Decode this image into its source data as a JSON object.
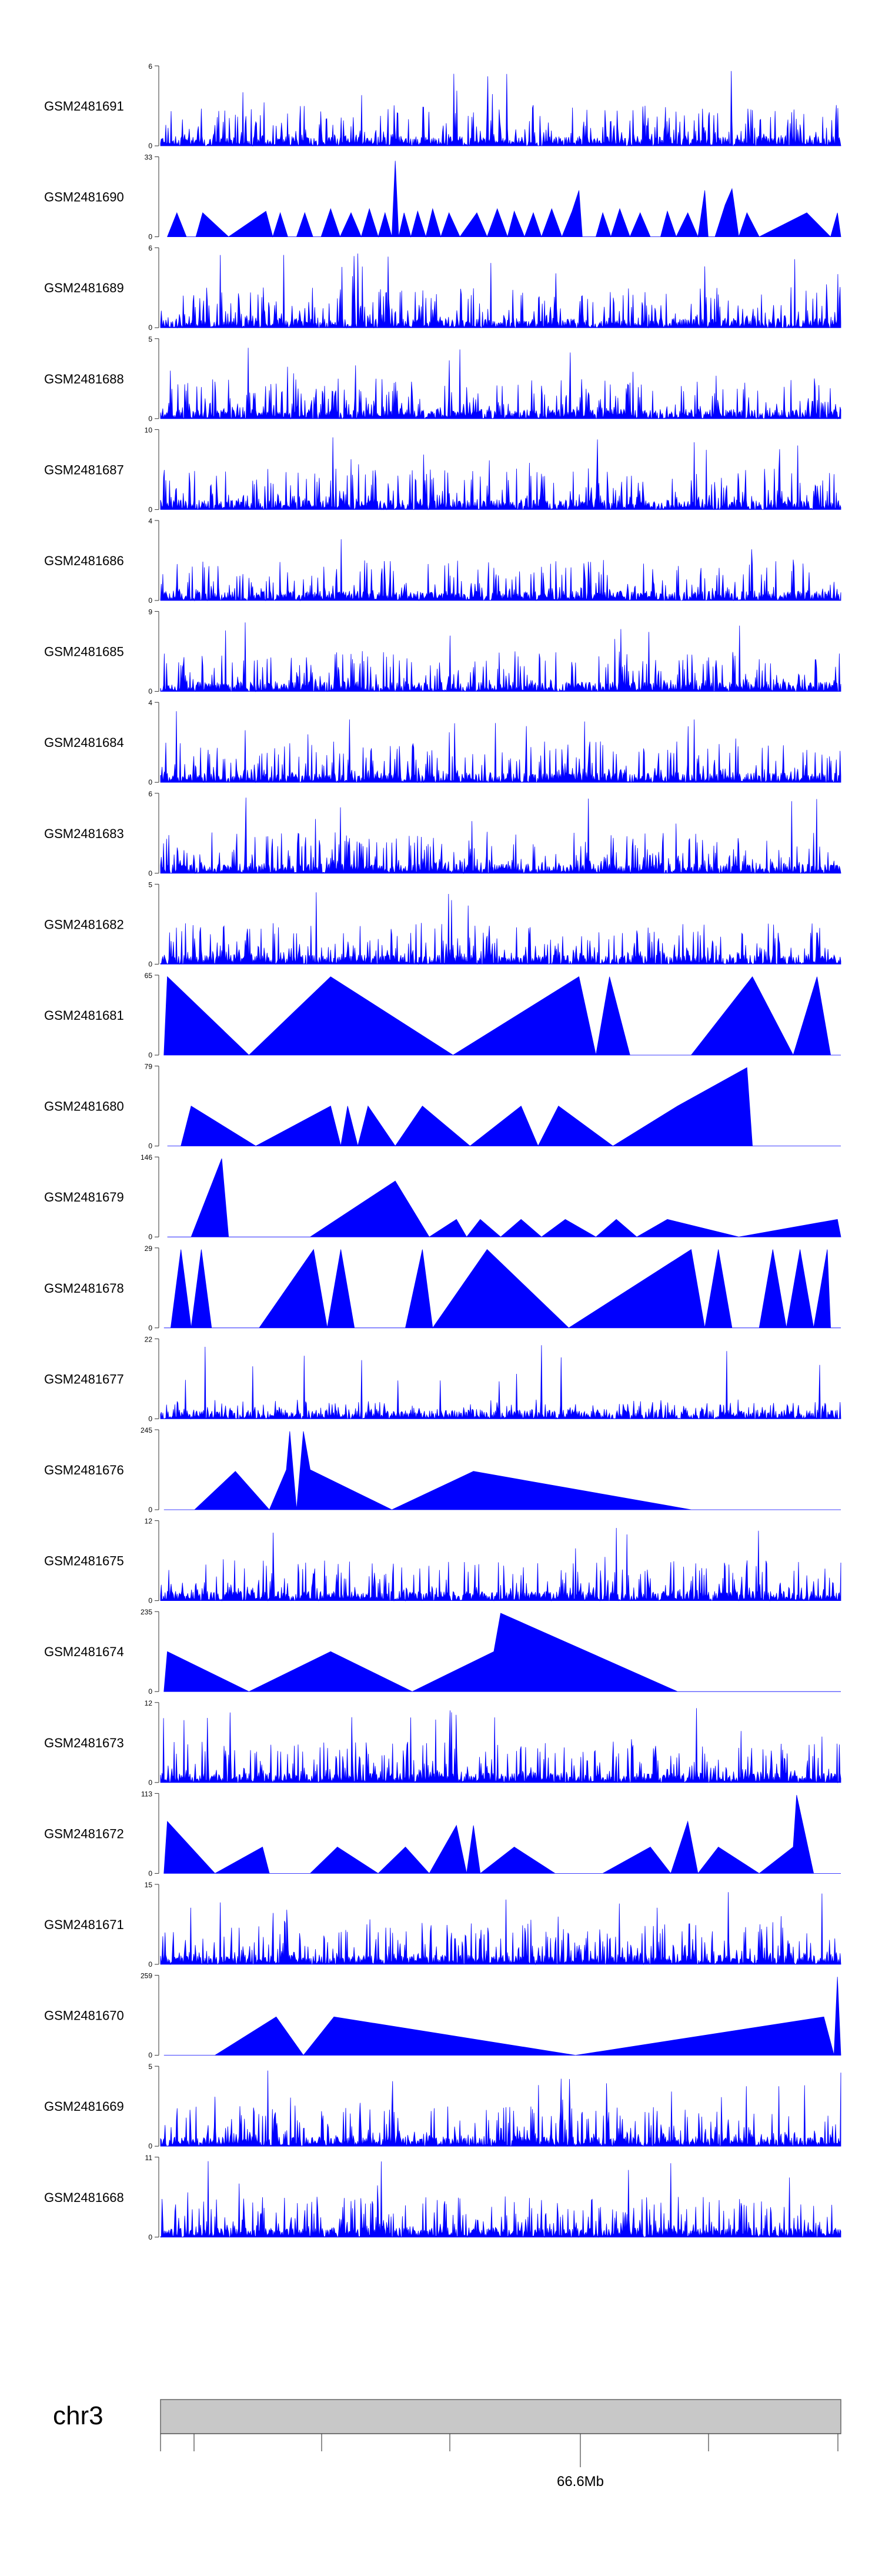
{
  "chart_data": {
    "type": "area",
    "title": "",
    "chromosome": "chr3",
    "genome_axis": {
      "tick_label": "66.6Mb"
    },
    "fill_color": "#0000ff",
    "ideogram_color": "#c8c8c8",
    "tracks": [
      {
        "name": "GSM2481691",
        "ymax": "6",
        "ymin": "0",
        "style": "dense",
        "seed": 11
      },
      {
        "name": "GSM2481690",
        "ymax": "33",
        "ymin": "0",
        "style": "sparse",
        "points": [
          [
            0.01,
            0
          ],
          [
            0.024,
            0.3
          ],
          [
            0.038,
            0
          ],
          [
            0.052,
            0
          ],
          [
            0.062,
            0.3
          ],
          [
            0.1,
            0
          ],
          [
            0.155,
            0.32
          ],
          [
            0.165,
            0
          ],
          [
            0.176,
            0.3
          ],
          [
            0.187,
            0
          ],
          [
            0.2,
            0
          ],
          [
            0.212,
            0.3
          ],
          [
            0.224,
            0
          ],
          [
            0.236,
            0
          ],
          [
            0.25,
            0.35
          ],
          [
            0.264,
            0
          ],
          [
            0.28,
            0.3
          ],
          [
            0.295,
            0
          ],
          [
            0.307,
            0.35
          ],
          [
            0.32,
            0
          ],
          [
            0.33,
            0.3
          ],
          [
            0.34,
            0
          ],
          [
            0.345,
            0.95
          ],
          [
            0.35,
            0
          ],
          [
            0.358,
            0.3
          ],
          [
            0.368,
            0
          ],
          [
            0.378,
            0.32
          ],
          [
            0.39,
            0
          ],
          [
            0.4,
            0.35
          ],
          [
            0.412,
            0
          ],
          [
            0.424,
            0.3
          ],
          [
            0.44,
            0
          ],
          [
            0.465,
            0.3
          ],
          [
            0.48,
            0
          ],
          [
            0.495,
            0.35
          ],
          [
            0.51,
            0
          ],
          [
            0.52,
            0.32
          ],
          [
            0.535,
            0
          ],
          [
            0.548,
            0.3
          ],
          [
            0.56,
            0
          ],
          [
            0.575,
            0.35
          ],
          [
            0.59,
            0
          ],
          [
            0.605,
            0.32
          ],
          [
            0.615,
            0.58
          ],
          [
            0.62,
            0
          ],
          [
            0.64,
            0
          ],
          [
            0.65,
            0.3
          ],
          [
            0.662,
            0
          ],
          [
            0.675,
            0.35
          ],
          [
            0.69,
            0
          ],
          [
            0.705,
            0.3
          ],
          [
            0.72,
            0
          ],
          [
            0.735,
            0
          ],
          [
            0.745,
            0.32
          ],
          [
            0.758,
            0
          ],
          [
            0.775,
            0.3
          ],
          [
            0.79,
            0
          ],
          [
            0.8,
            0.58
          ],
          [
            0.805,
            0
          ],
          [
            0.815,
            0
          ],
          [
            0.83,
            0.4
          ],
          [
            0.84,
            0.6
          ],
          [
            0.85,
            0
          ],
          [
            0.862,
            0.3
          ],
          [
            0.88,
            0
          ],
          [
            0.95,
            0.3
          ],
          [
            0.985,
            0
          ],
          [
            0.995,
            0.3
          ],
          [
            1.0,
            0
          ]
        ]
      },
      {
        "name": "GSM2481689",
        "ymax": "6",
        "ymin": "0",
        "style": "dense",
        "seed": 23
      },
      {
        "name": "GSM2481688",
        "ymax": "5",
        "ymin": "0",
        "style": "dense",
        "seed": 37
      },
      {
        "name": "GSM2481687",
        "ymax": "10",
        "ymin": "0",
        "style": "dense",
        "seed": 41
      },
      {
        "name": "GSM2481686",
        "ymax": "4",
        "ymin": "0",
        "style": "dense",
        "seed": 53
      },
      {
        "name": "GSM2481685",
        "ymax": "9",
        "ymin": "0",
        "style": "dense",
        "seed": 67
      },
      {
        "name": "GSM2481684",
        "ymax": "4",
        "ymin": "0",
        "style": "dense",
        "seed": 71
      },
      {
        "name": "GSM2481683",
        "ymax": "6",
        "ymin": "0",
        "style": "dense",
        "seed": 83
      },
      {
        "name": "GSM2481682",
        "ymax": "5",
        "ymin": "0",
        "style": "dense",
        "seed": 97
      },
      {
        "name": "GSM2481681",
        "ymax": "65",
        "ymin": "0",
        "style": "sparse",
        "points": [
          [
            0.005,
            0
          ],
          [
            0.01,
            0.98
          ],
          [
            0.13,
            0
          ],
          [
            0.25,
            0.98
          ],
          [
            0.43,
            0
          ],
          [
            0.615,
            0.98
          ],
          [
            0.64,
            0
          ],
          [
            0.66,
            0.98
          ],
          [
            0.69,
            0
          ],
          [
            0.78,
            0
          ],
          [
            0.87,
            0.98
          ],
          [
            0.93,
            0
          ],
          [
            0.965,
            0.98
          ],
          [
            0.985,
            0
          ],
          [
            1.0,
            0
          ]
        ]
      },
      {
        "name": "GSM2481680",
        "ymax": "79",
        "ymin": "0",
        "style": "sparse",
        "points": [
          [
            0.01,
            0
          ],
          [
            0.03,
            0
          ],
          [
            0.045,
            0.5
          ],
          [
            0.14,
            0
          ],
          [
            0.25,
            0.5
          ],
          [
            0.265,
            0
          ],
          [
            0.275,
            0.5
          ],
          [
            0.29,
            0
          ],
          [
            0.305,
            0.5
          ],
          [
            0.345,
            0
          ],
          [
            0.385,
            0.5
          ],
          [
            0.455,
            0
          ],
          [
            0.53,
            0.5
          ],
          [
            0.555,
            0
          ],
          [
            0.585,
            0.5
          ],
          [
            0.665,
            0
          ],
          [
            0.76,
            0.5
          ],
          [
            0.862,
            0.98
          ],
          [
            0.87,
            0
          ],
          [
            0.94,
            0
          ],
          [
            1.0,
            0
          ]
        ]
      },
      {
        "name": "GSM2481679",
        "ymax": "146",
        "ymin": "0",
        "style": "sparse",
        "points": [
          [
            0.01,
            0
          ],
          [
            0.045,
            0
          ],
          [
            0.09,
            0.98
          ],
          [
            0.1,
            0
          ],
          [
            0.22,
            0
          ],
          [
            0.345,
            0.7
          ],
          [
            0.395,
            0
          ],
          [
            0.435,
            0.22
          ],
          [
            0.45,
            0
          ],
          [
            0.47,
            0.22
          ],
          [
            0.5,
            0
          ],
          [
            0.53,
            0.22
          ],
          [
            0.56,
            0
          ],
          [
            0.595,
            0.22
          ],
          [
            0.64,
            0
          ],
          [
            0.67,
            0.22
          ],
          [
            0.7,
            0
          ],
          [
            0.745,
            0.22
          ],
          [
            0.85,
            0
          ],
          [
            0.995,
            0.22
          ],
          [
            1.0,
            0
          ]
        ]
      },
      {
        "name": "GSM2481678",
        "ymax": "29",
        "ymin": "0",
        "style": "sparse",
        "points": [
          [
            0.005,
            0
          ],
          [
            0.015,
            0
          ],
          [
            0.03,
            0.98
          ],
          [
            0.045,
            0
          ],
          [
            0.06,
            0.98
          ],
          [
            0.075,
            0
          ],
          [
            0.145,
            0
          ],
          [
            0.225,
            0.98
          ],
          [
            0.245,
            0
          ],
          [
            0.265,
            0.98
          ],
          [
            0.285,
            0
          ],
          [
            0.36,
            0
          ],
          [
            0.385,
            0.98
          ],
          [
            0.4,
            0
          ],
          [
            0.48,
            0.98
          ],
          [
            0.6,
            0
          ],
          [
            0.78,
            0.98
          ],
          [
            0.8,
            0
          ],
          [
            0.82,
            0.98
          ],
          [
            0.84,
            0
          ],
          [
            0.88,
            0
          ],
          [
            0.9,
            0.98
          ],
          [
            0.92,
            0
          ],
          [
            0.94,
            0.98
          ],
          [
            0.96,
            0
          ],
          [
            0.98,
            0.98
          ],
          [
            0.985,
            0
          ],
          [
            1.0,
            0
          ]
        ]
      },
      {
        "name": "GSM2481677",
        "ymax": "22",
        "ymin": "0",
        "style": "dense",
        "seed": 101,
        "spikes": [
          [
            0.065,
            0.9
          ],
          [
            0.56,
            0.92
          ]
        ],
        "scale": 0.15
      },
      {
        "name": "GSM2481676",
        "ymax": "245",
        "ymin": "0",
        "style": "sparse",
        "points": [
          [
            0.005,
            0
          ],
          [
            0.05,
            0
          ],
          [
            0.11,
            0.48
          ],
          [
            0.16,
            0
          ],
          [
            0.185,
            0.5
          ],
          [
            0.19,
            0.98
          ],
          [
            0.2,
            0
          ],
          [
            0.21,
            0.98
          ],
          [
            0.22,
            0.5
          ],
          [
            0.34,
            0
          ],
          [
            0.46,
            0.48
          ],
          [
            0.78,
            0
          ],
          [
            1.0,
            0
          ]
        ]
      },
      {
        "name": "GSM2481675",
        "ymax": "12",
        "ymin": "0",
        "style": "dense",
        "seed": 113
      },
      {
        "name": "GSM2481674",
        "ymax": "235",
        "ymin": "0",
        "style": "sparse",
        "points": [
          [
            0.005,
            0
          ],
          [
            0.01,
            0.5
          ],
          [
            0.13,
            0
          ],
          [
            0.25,
            0.5
          ],
          [
            0.37,
            0
          ],
          [
            0.49,
            0.5
          ],
          [
            0.5,
            0.98
          ],
          [
            0.76,
            0
          ],
          [
            1.0,
            0
          ]
        ]
      },
      {
        "name": "GSM2481673",
        "ymax": "12",
        "ymin": "0",
        "style": "dense",
        "seed": 127
      },
      {
        "name": "GSM2481672",
        "ymax": "113",
        "ymin": "0",
        "style": "sparse",
        "points": [
          [
            0.005,
            0
          ],
          [
            0.01,
            0.65
          ],
          [
            0.08,
            0
          ],
          [
            0.15,
            0.33
          ],
          [
            0.16,
            0
          ],
          [
            0.22,
            0
          ],
          [
            0.26,
            0.33
          ],
          [
            0.32,
            0
          ],
          [
            0.36,
            0.33
          ],
          [
            0.395,
            0
          ],
          [
            0.435,
            0.6
          ],
          [
            0.45,
            0
          ],
          [
            0.46,
            0.6
          ],
          [
            0.47,
            0
          ],
          [
            0.52,
            0.33
          ],
          [
            0.58,
            0
          ],
          [
            0.65,
            0
          ],
          [
            0.72,
            0.33
          ],
          [
            0.75,
            0
          ],
          [
            0.775,
            0.65
          ],
          [
            0.79,
            0
          ],
          [
            0.82,
            0.33
          ],
          [
            0.88,
            0
          ],
          [
            0.93,
            0.33
          ],
          [
            0.935,
            0.98
          ],
          [
            0.96,
            0
          ],
          [
            1.0,
            0
          ]
        ]
      },
      {
        "name": "GSM2481671",
        "ymax": "15",
        "ymin": "0",
        "style": "dense",
        "seed": 139
      },
      {
        "name": "GSM2481670",
        "ymax": "259",
        "ymin": "0",
        "style": "sparse",
        "points": [
          [
            0.005,
            0
          ],
          [
            0.08,
            0
          ],
          [
            0.17,
            0.48
          ],
          [
            0.21,
            0
          ],
          [
            0.255,
            0.48
          ],
          [
            0.61,
            0
          ],
          [
            0.975,
            0.48
          ],
          [
            0.99,
            0
          ],
          [
            0.995,
            0.98
          ],
          [
            1.0,
            0
          ]
        ]
      },
      {
        "name": "GSM2481669",
        "ymax": "5",
        "ymin": "0",
        "style": "dense",
        "seed": 149
      },
      {
        "name": "GSM2481668",
        "ymax": "11",
        "ymin": "0",
        "style": "dense",
        "seed": 163,
        "spikes": [
          [
            0.07,
            0.95
          ]
        ]
      }
    ]
  }
}
